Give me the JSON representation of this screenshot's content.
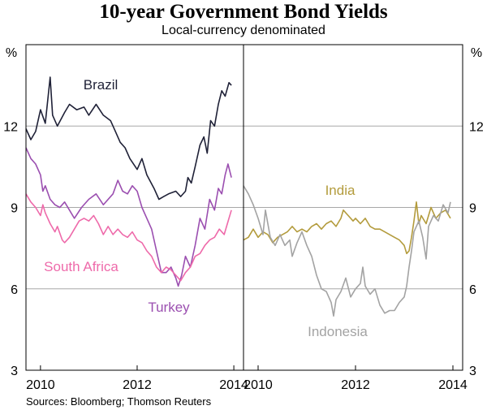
{
  "title": "10-year Government Bond Yields",
  "subtitle": "Local-currency denominated",
  "source": "Sources: Bloomberg; Thomson Reuters",
  "chart_data": {
    "type": "line",
    "y_unit": "%",
    "ylim": [
      3,
      15
    ],
    "y_ticks": [
      3,
      6,
      9,
      12
    ],
    "x_ticks": [
      2010,
      2012,
      2014
    ],
    "grid": true,
    "panels": [
      {
        "xlim": [
          2009.7,
          2014.2
        ],
        "series": [
          {
            "name": "Brazil",
            "color": "#1f2137",
            "points": [
              [
                2009.7,
                11.9
              ],
              [
                2009.8,
                11.5
              ],
              [
                2009.9,
                11.8
              ],
              [
                2010.0,
                12.6
              ],
              [
                2010.1,
                12.1
              ],
              [
                2010.2,
                13.8
              ],
              [
                2010.25,
                12.4
              ],
              [
                2010.35,
                12.0
              ],
              [
                2010.5,
                12.5
              ],
              [
                2010.6,
                12.8
              ],
              [
                2010.75,
                12.6
              ],
              [
                2010.9,
                12.7
              ],
              [
                2011.0,
                12.4
              ],
              [
                2011.15,
                12.8
              ],
              [
                2011.3,
                12.4
              ],
              [
                2011.45,
                12.2
              ],
              [
                2011.55,
                11.8
              ],
              [
                2011.65,
                11.4
              ],
              [
                2011.75,
                11.2
              ],
              [
                2011.85,
                10.8
              ],
              [
                2012.0,
                10.4
              ],
              [
                2012.1,
                10.8
              ],
              [
                2012.2,
                10.2
              ],
              [
                2012.35,
                9.7
              ],
              [
                2012.45,
                9.3
              ],
              [
                2012.55,
                9.4
              ],
              [
                2012.65,
                9.5
              ],
              [
                2012.8,
                9.6
              ],
              [
                2012.9,
                9.4
              ],
              [
                2013.0,
                9.6
              ],
              [
                2013.05,
                10.1
              ],
              [
                2013.12,
                9.9
              ],
              [
                2013.2,
                10.5
              ],
              [
                2013.3,
                11.3
              ],
              [
                2013.38,
                11.6
              ],
              [
                2013.45,
                11.0
              ],
              [
                2013.52,
                12.2
              ],
              [
                2013.6,
                12.0
              ],
              [
                2013.68,
                12.8
              ],
              [
                2013.75,
                13.3
              ],
              [
                2013.82,
                13.1
              ],
              [
                2013.9,
                13.6
              ],
              [
                2013.95,
                13.5
              ]
            ]
          },
          {
            "name": "Turkey",
            "color": "#9b4fb0",
            "points": [
              [
                2009.7,
                11.2
              ],
              [
                2009.8,
                10.8
              ],
              [
                2009.9,
                10.6
              ],
              [
                2010.0,
                10.2
              ],
              [
                2010.05,
                9.6
              ],
              [
                2010.1,
                9.8
              ],
              [
                2010.2,
                9.3
              ],
              [
                2010.3,
                9.1
              ],
              [
                2010.4,
                9.0
              ],
              [
                2010.5,
                9.2
              ],
              [
                2010.6,
                8.9
              ],
              [
                2010.7,
                8.6
              ],
              [
                2010.85,
                9.0
              ],
              [
                2011.0,
                9.3
              ],
              [
                2011.15,
                9.5
              ],
              [
                2011.3,
                9.1
              ],
              [
                2011.5,
                9.5
              ],
              [
                2011.6,
                10.0
              ],
              [
                2011.7,
                9.6
              ],
              [
                2011.8,
                9.5
              ],
              [
                2011.9,
                9.8
              ],
              [
                2012.0,
                9.6
              ],
              [
                2012.1,
                9.0
              ],
              [
                2012.2,
                8.6
              ],
              [
                2012.3,
                8.2
              ],
              [
                2012.4,
                7.4
              ],
              [
                2012.5,
                6.6
              ],
              [
                2012.6,
                6.6
              ],
              [
                2012.7,
                6.8
              ],
              [
                2012.8,
                6.4
              ],
              [
                2012.85,
                6.1
              ],
              [
                2012.92,
                6.5
              ],
              [
                2013.0,
                7.2
              ],
              [
                2013.1,
                6.8
              ],
              [
                2013.2,
                7.6
              ],
              [
                2013.3,
                8.6
              ],
              [
                2013.4,
                8.2
              ],
              [
                2013.5,
                9.3
              ],
              [
                2013.6,
                8.9
              ],
              [
                2013.68,
                9.7
              ],
              [
                2013.75,
                9.5
              ],
              [
                2013.82,
                10.2
              ],
              [
                2013.88,
                10.6
              ],
              [
                2013.95,
                10.1
              ]
            ]
          },
          {
            "name": "South Africa",
            "color": "#ee6aaa",
            "points": [
              [
                2009.7,
                9.5
              ],
              [
                2009.8,
                9.2
              ],
              [
                2009.9,
                9.0
              ],
              [
                2010.0,
                8.7
              ],
              [
                2010.05,
                9.1
              ],
              [
                2010.1,
                8.8
              ],
              [
                2010.2,
                8.4
              ],
              [
                2010.3,
                8.1
              ],
              [
                2010.35,
                8.3
              ],
              [
                2010.45,
                7.8
              ],
              [
                2010.5,
                7.7
              ],
              [
                2010.6,
                7.9
              ],
              [
                2010.7,
                8.2
              ],
              [
                2010.8,
                8.5
              ],
              [
                2010.9,
                8.6
              ],
              [
                2011.0,
                8.5
              ],
              [
                2011.1,
                8.7
              ],
              [
                2011.2,
                8.4
              ],
              [
                2011.3,
                8.0
              ],
              [
                2011.4,
                8.3
              ],
              [
                2011.5,
                8.0
              ],
              [
                2011.6,
                8.2
              ],
              [
                2011.7,
                8.0
              ],
              [
                2011.8,
                7.9
              ],
              [
                2011.9,
                8.1
              ],
              [
                2012.0,
                7.8
              ],
              [
                2012.1,
                7.7
              ],
              [
                2012.2,
                7.4
              ],
              [
                2012.3,
                7.2
              ],
              [
                2012.4,
                6.8
              ],
              [
                2012.5,
                6.6
              ],
              [
                2012.6,
                6.8
              ],
              [
                2012.7,
                6.7
              ],
              [
                2012.8,
                6.5
              ],
              [
                2012.9,
                6.3
              ],
              [
                2013.0,
                6.6
              ],
              [
                2013.1,
                6.8
              ],
              [
                2013.2,
                7.2
              ],
              [
                2013.3,
                7.3
              ],
              [
                2013.4,
                7.6
              ],
              [
                2013.5,
                7.8
              ],
              [
                2013.6,
                7.9
              ],
              [
                2013.7,
                8.2
              ],
              [
                2013.8,
                8.0
              ],
              [
                2013.9,
                8.6
              ],
              [
                2013.95,
                8.9
              ]
            ]
          }
        ],
        "labels": [
          "Brazil",
          "South Africa",
          "Turkey"
        ]
      },
      {
        "xlim": [
          2009.7,
          2014.2
        ],
        "series": [
          {
            "name": "India",
            "color": "#b39b3c",
            "points": [
              [
                2009.7,
                7.8
              ],
              [
                2009.8,
                7.9
              ],
              [
                2009.9,
                8.2
              ],
              [
                2010.0,
                7.9
              ],
              [
                2010.1,
                8.1
              ],
              [
                2010.2,
                8.0
              ],
              [
                2010.3,
                7.7
              ],
              [
                2010.4,
                7.9
              ],
              [
                2010.5,
                8.0
              ],
              [
                2010.6,
                8.1
              ],
              [
                2010.7,
                8.3
              ],
              [
                2010.8,
                8.1
              ],
              [
                2010.9,
                8.2
              ],
              [
                2011.0,
                8.1
              ],
              [
                2011.1,
                8.3
              ],
              [
                2011.2,
                8.4
              ],
              [
                2011.3,
                8.2
              ],
              [
                2011.4,
                8.4
              ],
              [
                2011.5,
                8.5
              ],
              [
                2011.6,
                8.3
              ],
              [
                2011.7,
                8.6
              ],
              [
                2011.75,
                8.9
              ],
              [
                2011.85,
                8.7
              ],
              [
                2011.95,
                8.5
              ],
              [
                2012.0,
                8.6
              ],
              [
                2012.1,
                8.4
              ],
              [
                2012.2,
                8.6
              ],
              [
                2012.3,
                8.3
              ],
              [
                2012.4,
                8.2
              ],
              [
                2012.5,
                8.2
              ],
              [
                2012.6,
                8.1
              ],
              [
                2012.7,
                8.0
              ],
              [
                2012.8,
                7.9
              ],
              [
                2012.9,
                7.8
              ],
              [
                2013.0,
                7.6
              ],
              [
                2013.05,
                7.3
              ],
              [
                2013.1,
                7.4
              ],
              [
                2013.15,
                7.9
              ],
              [
                2013.2,
                8.5
              ],
              [
                2013.25,
                9.2
              ],
              [
                2013.3,
                8.4
              ],
              [
                2013.35,
                8.7
              ],
              [
                2013.45,
                8.4
              ],
              [
                2013.55,
                9.0
              ],
              [
                2013.65,
                8.6
              ],
              [
                2013.75,
                8.8
              ],
              [
                2013.85,
                8.9
              ],
              [
                2013.95,
                8.6
              ]
            ]
          },
          {
            "name": "Indonesia",
            "color": "#a3a3a3",
            "points": [
              [
                2009.7,
                9.8
              ],
              [
                2009.8,
                9.5
              ],
              [
                2009.9,
                9.1
              ],
              [
                2010.0,
                8.6
              ],
              [
                2010.1,
                8.0
              ],
              [
                2010.15,
                8.9
              ],
              [
                2010.25,
                7.9
              ],
              [
                2010.35,
                7.6
              ],
              [
                2010.45,
                8.0
              ],
              [
                2010.55,
                7.6
              ],
              [
                2010.65,
                7.8
              ],
              [
                2010.7,
                7.2
              ],
              [
                2010.8,
                7.7
              ],
              [
                2010.9,
                8.1
              ],
              [
                2011.0,
                7.6
              ],
              [
                2011.1,
                7.2
              ],
              [
                2011.2,
                6.5
              ],
              [
                2011.3,
                6.0
              ],
              [
                2011.4,
                5.9
              ],
              [
                2011.5,
                5.5
              ],
              [
                2011.55,
                5.0
              ],
              [
                2011.6,
                5.6
              ],
              [
                2011.7,
                5.9
              ],
              [
                2011.8,
                6.4
              ],
              [
                2011.9,
                5.7
              ],
              [
                2012.0,
                6.0
              ],
              [
                2012.1,
                6.2
              ],
              [
                2012.15,
                6.8
              ],
              [
                2012.2,
                6.1
              ],
              [
                2012.3,
                5.8
              ],
              [
                2012.4,
                6.0
              ],
              [
                2012.5,
                5.4
              ],
              [
                2012.6,
                5.1
              ],
              [
                2012.7,
                5.2
              ],
              [
                2012.8,
                5.2
              ],
              [
                2012.9,
                5.5
              ],
              [
                2013.0,
                5.7
              ],
              [
                2013.05,
                6.1
              ],
              [
                2013.1,
                6.8
              ],
              [
                2013.15,
                7.4
              ],
              [
                2013.2,
                8.1
              ],
              [
                2013.3,
                8.5
              ],
              [
                2013.38,
                7.9
              ],
              [
                2013.45,
                7.1
              ],
              [
                2013.5,
                8.3
              ],
              [
                2013.6,
                8.7
              ],
              [
                2013.7,
                8.5
              ],
              [
                2013.8,
                9.1
              ],
              [
                2013.9,
                8.8
              ],
              [
                2013.95,
                9.2
              ]
            ]
          }
        ],
        "labels": [
          "India",
          "Indonesia"
        ]
      }
    ]
  }
}
